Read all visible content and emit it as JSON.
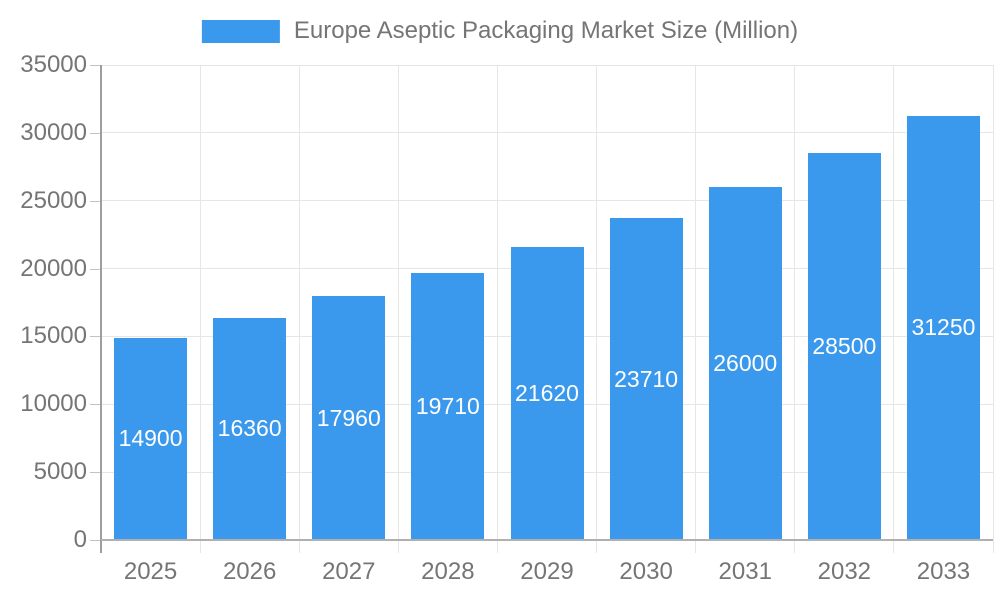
{
  "chart_data": {
    "type": "bar",
    "title": "Europe Aseptic Packaging Market Size (Million)",
    "categories": [
      "2025",
      "2026",
      "2027",
      "2028",
      "2029",
      "2030",
      "2031",
      "2032",
      "2033"
    ],
    "values": [
      14900,
      16360,
      17960,
      19710,
      21620,
      23710,
      26000,
      28500,
      31250
    ],
    "bar_labels": [
      "14900",
      "16360",
      "17960",
      "19710",
      "21620",
      "23710",
      "26000",
      "28500",
      "31250"
    ],
    "xlabel": "",
    "ylabel": "",
    "ylim": [
      0,
      35000
    ],
    "ytick_step": 5000,
    "ytick_labels": [
      "0",
      "5000",
      "10000",
      "15000",
      "20000",
      "25000",
      "30000",
      "35000"
    ],
    "grid": true,
    "legend_position": "top-center",
    "legend_entries": [
      "Europe Aseptic Packaging Market Size (Million)"
    ],
    "colors": {
      "bar": "#3a99ec",
      "bar_label_text": "#ffffff",
      "axis_text": "#757575",
      "y_axis_line": "#9e9e9e",
      "x_axis_line": "#b0b0b0",
      "tick": "#c2c2c2",
      "gridline": "#e6e6e6",
      "background": "#ffffff"
    }
  }
}
